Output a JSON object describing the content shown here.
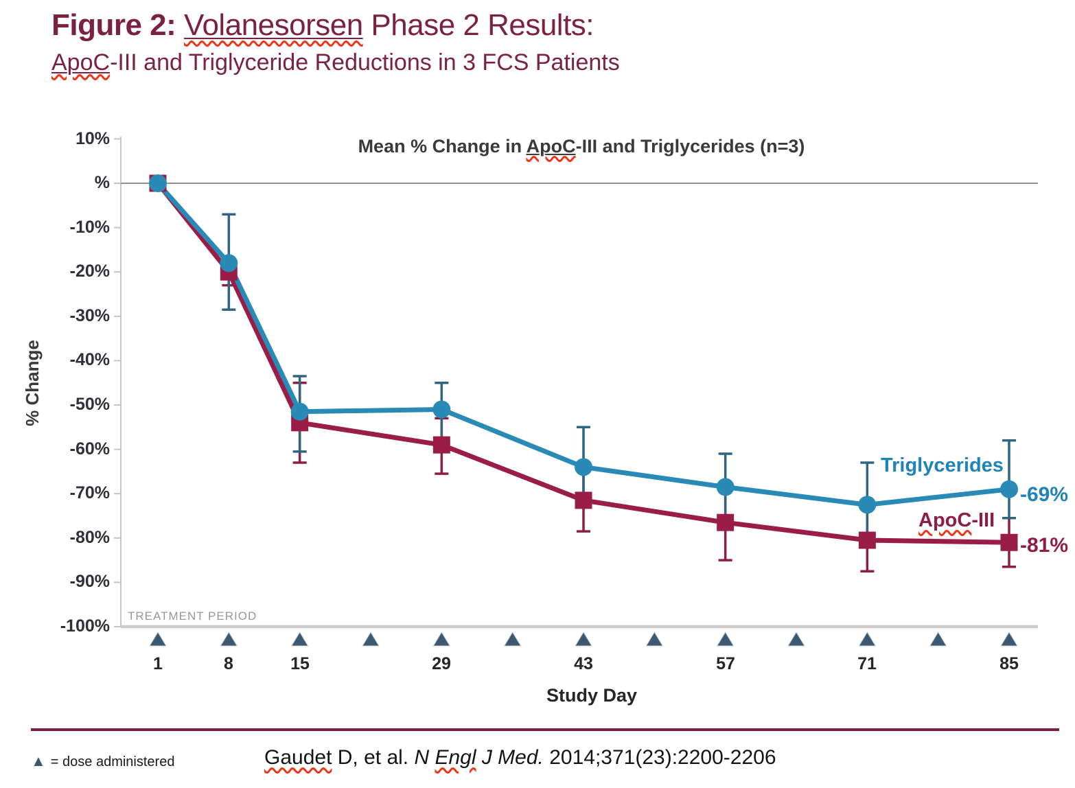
{
  "header": {
    "figure_label": "Figure 2: ",
    "title_wavy": "Volanesorsen",
    "title_rest": " Phase 2 Results:",
    "subtitle_wavy": "ApoC",
    "subtitle_rest": "-III and Triglyceride Reductions in 3 FCS Patients"
  },
  "chart_data": {
    "type": "line",
    "title": "Mean % Change in ApoC-III and Triglycerides (n=3)",
    "title_parts": {
      "pre": "Mean % Change in ",
      "wavy": "ApoC",
      "post": "-III and Triglycerides (n=3)"
    },
    "xlabel": "Study Day",
    "ylabel": "% Change",
    "xlim": [
      1,
      85
    ],
    "ylim": [
      -100,
      10
    ],
    "grid": "zero-line-only",
    "legend_position": "inline-right-of-lines",
    "x": [
      1,
      8,
      15,
      29,
      43,
      57,
      71,
      85
    ],
    "x_tick_labels": [
      "1",
      "8",
      "15",
      "29",
      "43",
      "57",
      "71",
      "85"
    ],
    "y_tick_values": [
      10,
      0,
      -10,
      -20,
      -30,
      -40,
      -50,
      -60,
      -70,
      -80,
      -90,
      -100
    ],
    "y_tick_labels": [
      "10%",
      "%",
      "-10%",
      "-20%",
      "-30%",
      "-40%",
      "-50%",
      "-60%",
      "-70%",
      "-80%",
      "-90%",
      "-100%"
    ],
    "dose_days": [
      1,
      8,
      15,
      22,
      29,
      36,
      43,
      50,
      57,
      64,
      71,
      78,
      85
    ],
    "treatment_period_label": "TREATMENT PERIOD",
    "series": [
      {
        "name": "Triglycerides",
        "marker": "circle",
        "color": "#2A8AB6",
        "error_color": "#2F6580",
        "end_label": "-69%",
        "values": [
          0,
          -18,
          -51.5,
          -51,
          -64,
          -68.5,
          -72.5,
          -69
        ],
        "error_high": [
          null,
          -7,
          -43.5,
          -45,
          -55,
          -61,
          -63,
          -58
        ],
        "error_low": [
          null,
          -28.5,
          -60.5,
          -57.5,
          -73,
          -76,
          -82,
          -75.5
        ]
      },
      {
        "name": "ApoC-III",
        "marker": "square",
        "color": "#9A1D47",
        "error_color": "#8C1F42",
        "end_label": "-81%",
        "values": [
          0,
          -20,
          -54,
          -59,
          -71.5,
          -76.5,
          -80.5,
          -81
        ],
        "error_high": [
          null,
          -17.5,
          -45,
          -53,
          -65,
          -69,
          -73.5,
          -75.5
        ],
        "error_low": [
          null,
          -23,
          -63,
          -65.5,
          -78.5,
          -85,
          -87.5,
          -86.5
        ]
      }
    ]
  },
  "series_labels": {
    "triglycerides": "Triglycerides",
    "triglycerides_value": "-69%",
    "apoc_wavy": "ApoC",
    "apoc_rest": "-III",
    "apoc_value": "-81%"
  },
  "footer": {
    "dose_triangle": "▲",
    "dose_text": "= dose administered",
    "citation": {
      "author_wavy": "Gaudet",
      "author_rest": " D, et al. ",
      "journal_pre": "N ",
      "journal_wavy": "Engl",
      "journal_post": " J Med.",
      "tail": " 2014;371(23):2200-2206"
    }
  },
  "colors": {
    "accent_maroon": "#7B2142",
    "triglycerides_blue": "#2A8AB6",
    "apoc_maroon": "#9A1D47",
    "dose_triangle_slate": "#3D5972",
    "squiggle_red": "#f03417",
    "axis_gray": "#c4c4c4",
    "zero_line_gray": "#8f8f8f"
  }
}
